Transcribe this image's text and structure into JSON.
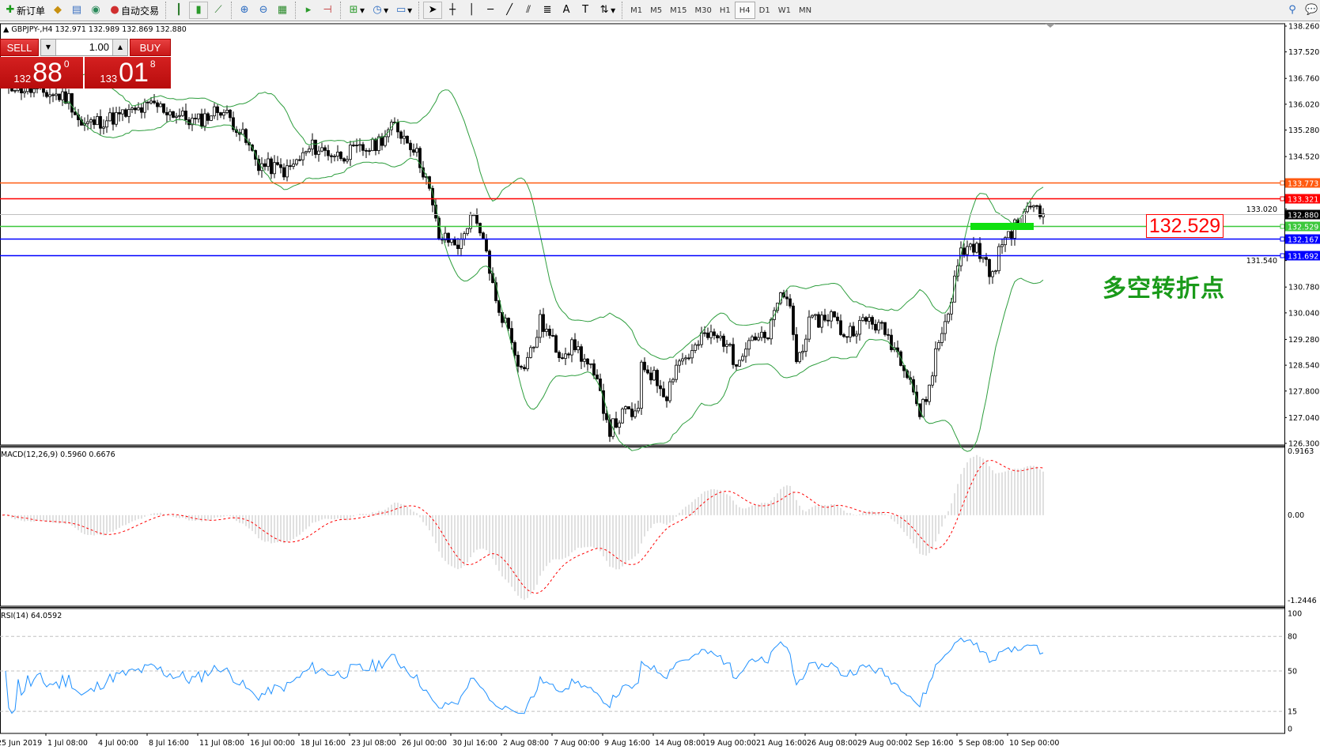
{
  "toolbar": {
    "new_order": "新订单",
    "auto_trading": "自动交易",
    "icons": [
      "new-order-icon",
      "navigator-icon",
      "terminal-icon",
      "signals-icon",
      "auto-trading-icon",
      "bar-chart-icon",
      "candlestick-icon",
      "line-chart-icon",
      "zoom-in-icon",
      "zoom-out-icon",
      "tile-windows-icon",
      "chart-shift-icon",
      "autoscroll-icon",
      "indicators-icon",
      "periods-icon",
      "templates-icon",
      "cursor-icon",
      "crosshair-icon",
      "vertical-line-icon",
      "horizontal-line-icon",
      "trendline-icon",
      "equidistant-channel-icon",
      "fibonacci-icon",
      "text-icon",
      "text-label-icon",
      "arrows-icon",
      "search-icon",
      "chat-icon"
    ],
    "timeframes": [
      "M1",
      "M5",
      "M15",
      "M30",
      "H1",
      "H4",
      "D1",
      "W1",
      "MN"
    ],
    "active_timeframe": "H4"
  },
  "chart_header": "GBPJPY-,H4  132.971 132.989 132.869 132.880",
  "one_click": {
    "sell_label": "SELL",
    "buy_label": "BUY",
    "lot": "1.00",
    "sell_price": {
      "small": "132",
      "big": "88",
      "pip": "0"
    },
    "buy_price": {
      "small": "133",
      "big": "01",
      "pip": "8"
    }
  },
  "annotation": {
    "level_label": "132.529",
    "note": "多空转折点"
  },
  "colors": {
    "bull_bear": "#000000",
    "bands": "#2e9e3e",
    "macd_hist": "#c0c0c0",
    "macd_signal": "#ff0000",
    "rsi": "#1e90ff"
  },
  "chart_data": {
    "type": "candlestick",
    "symbol": "GBPJPY-",
    "timeframe": "H4",
    "ohlc_last": {
      "open": 132.971,
      "high": 132.989,
      "low": 132.869,
      "close": 132.88
    },
    "ylim": [
      126.3,
      138.26
    ],
    "price_ticks": [
      "138.260",
      "137.520",
      "136.760",
      "136.020",
      "135.280",
      "134.520",
      "133.020",
      "131.540",
      "130.780",
      "130.040",
      "129.280",
      "128.540",
      "127.800",
      "127.040",
      "126.300"
    ],
    "time_labels": [
      "25 Jun 2019",
      "1 Jul 08:00",
      "4 Jul 00:00",
      "8 Jul 16:00",
      "11 Jul 08:00",
      "16 Jul 00:00",
      "18 Jul 16:00",
      "23 Jul 08:00",
      "26 Jul 00:00",
      "30 Jul 16:00",
      "2 Aug 08:00",
      "7 Aug 00:00",
      "9 Aug 16:00",
      "14 Aug 08:00",
      "19 Aug 00:00",
      "21 Aug 16:00",
      "26 Aug 08:00",
      "29 Aug 00:00",
      "2 Sep 16:00",
      "5 Sep 08:00",
      "10 Sep 00:00"
    ],
    "close_path": [
      [
        0,
        136.7
      ],
      [
        5,
        136.5
      ],
      [
        21,
        136.2
      ],
      [
        25,
        135.4
      ],
      [
        40,
        135.75
      ],
      [
        48,
        136.0
      ],
      [
        61,
        135.5
      ],
      [
        69,
        135.9
      ],
      [
        74,
        135.4
      ],
      [
        81,
        134.3
      ],
      [
        90,
        134.1
      ],
      [
        98,
        134.8
      ],
      [
        106,
        134.55
      ],
      [
        117,
        134.8
      ],
      [
        124,
        135.4
      ],
      [
        130,
        134.8
      ],
      [
        134,
        133.9
      ],
      [
        138,
        132.2
      ],
      [
        145,
        132.0
      ],
      [
        148,
        132.9
      ],
      [
        153,
        131.8
      ],
      [
        156,
        130.3
      ],
      [
        160,
        129.6
      ],
      [
        164,
        128.4
      ],
      [
        168,
        129.1
      ],
      [
        170,
        129.8
      ],
      [
        176,
        128.9
      ],
      [
        181,
        129.1
      ],
      [
        186,
        128.4
      ],
      [
        189,
        127.7
      ],
      [
        192,
        126.7
      ],
      [
        197,
        127.2
      ],
      [
        201,
        127.1
      ],
      [
        202,
        128.6
      ],
      [
        206,
        128.2
      ],
      [
        210,
        127.7
      ],
      [
        213,
        128.6
      ],
      [
        218,
        128.9
      ],
      [
        222,
        129.4
      ],
      [
        229,
        129.25
      ],
      [
        231,
        128.6
      ],
      [
        237,
        129.4
      ],
      [
        242,
        129.25
      ],
      [
        245,
        130.45
      ],
      [
        249,
        130.3
      ],
      [
        251,
        128.6
      ],
      [
        255,
        129.7
      ],
      [
        262,
        130.0
      ],
      [
        266,
        129.4
      ],
      [
        269,
        129.6
      ],
      [
        274,
        129.85
      ],
      [
        279,
        129.5
      ],
      [
        285,
        128.6
      ],
      [
        287,
        128.2
      ],
      [
        290,
        127.1
      ],
      [
        293,
        127.9
      ],
      [
        295,
        128.9
      ],
      [
        299,
        130.1
      ],
      [
        303,
        131.8
      ],
      [
        307,
        132.0
      ],
      [
        311,
        131.4
      ],
      [
        314,
        131.05
      ],
      [
        315,
        132.0
      ],
      [
        319,
        132.4
      ],
      [
        322,
        132.7
      ],
      [
        326,
        133.2
      ],
      [
        329,
        132.88
      ]
    ],
    "indicators": {
      "bands": "Bollinger Bands(20, 2)",
      "macd": {
        "label": "MACD(12,26,9) 0.5960 0.6676",
        "ticks": [
          "0.9163",
          "0.00",
          "-1.2446"
        ],
        "ylim": [
          -1.2446,
          0.9163
        ]
      },
      "rsi": {
        "label": "RSI(14) 64.0592",
        "ticks": [
          "100",
          "80",
          "50",
          "15",
          "0"
        ],
        "levels": [
          80,
          50,
          15
        ],
        "ylim": [
          0,
          100
        ]
      }
    },
    "horizontal_lines": [
      {
        "price": "133.773",
        "color": "#ff5a10"
      },
      {
        "price": "133.321",
        "color": "#ff0000"
      },
      {
        "price": "132.880",
        "color": "#c0c0c0",
        "label_bg": "#000000"
      },
      {
        "price": "132.529",
        "color": "#3cc83c"
      },
      {
        "price": "132.167",
        "color": "#0000ff"
      },
      {
        "price": "131.692",
        "color": "#0000ff"
      }
    ]
  }
}
